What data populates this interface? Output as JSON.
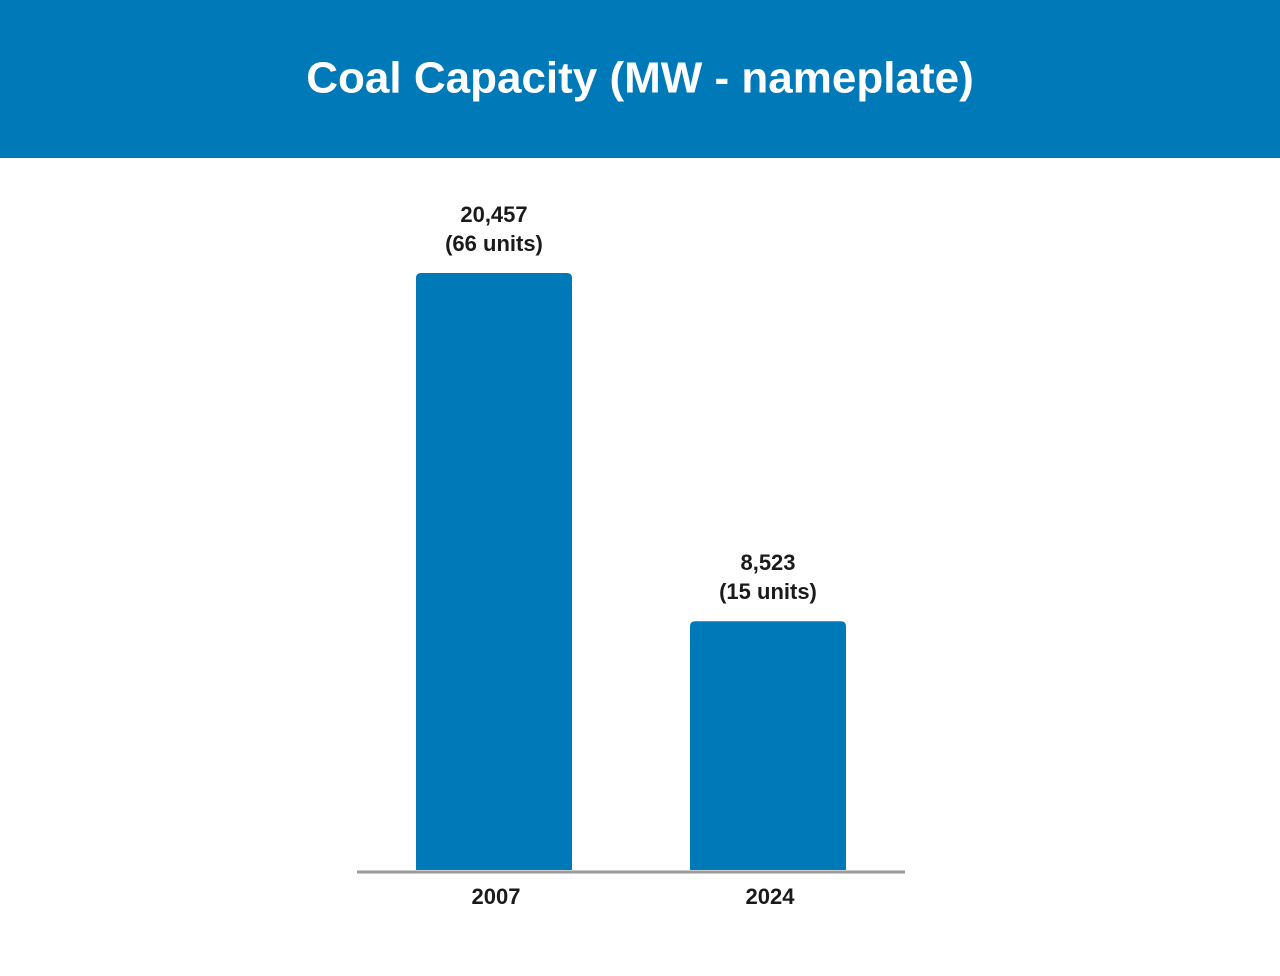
{
  "chart_data": {
    "type": "bar",
    "title": "Coal Capacity (MW - nameplate)",
    "categories": [
      "2007",
      "2024"
    ],
    "values": [
      20457,
      8523
    ],
    "value_labels": [
      "20,457",
      "8,523"
    ],
    "unit_labels": [
      "(66 units)",
      "(15 units)"
    ],
    "color": "#0079b8",
    "ylim": [
      0,
      22000
    ]
  }
}
